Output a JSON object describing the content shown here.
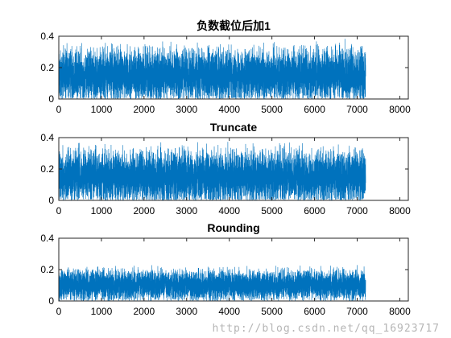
{
  "chart_data": [
    {
      "type": "line",
      "title": "负数截位后加1",
      "xlabel": "",
      "ylabel": "",
      "xlim": [
        0,
        8200
      ],
      "ylim": [
        0,
        0.4
      ],
      "xticks": [
        0,
        1000,
        2000,
        3000,
        4000,
        5000,
        6000,
        7000,
        8000
      ],
      "yticks": [
        0,
        0.2,
        0.4
      ],
      "series": [
        {
          "n_points": 7200,
          "x_range": [
            1,
            7200
          ],
          "approx_mean": 0.15,
          "approx_min": 0.0,
          "approx_max": 0.39,
          "color": "#0072BD"
        }
      ],
      "grid": false
    },
    {
      "type": "line",
      "title": "Truncate",
      "xlabel": "",
      "ylabel": "",
      "xlim": [
        0,
        8200
      ],
      "ylim": [
        0,
        0.4
      ],
      "xticks": [
        0,
        1000,
        2000,
        3000,
        4000,
        5000,
        6000,
        7000,
        8000
      ],
      "yticks": [
        0,
        0.2,
        0.4
      ],
      "series": [
        {
          "n_points": 7200,
          "x_range": [
            1,
            7200
          ],
          "approx_mean": 0.15,
          "approx_min": 0.0,
          "approx_max": 0.39,
          "color": "#0072BD"
        }
      ],
      "grid": false
    },
    {
      "type": "line",
      "title": "Rounding",
      "xlabel": "",
      "ylabel": "",
      "xlim": [
        0,
        8200
      ],
      "ylim": [
        0,
        0.4
      ],
      "xticks": [
        0,
        1000,
        2000,
        3000,
        4000,
        5000,
        6000,
        7000,
        8000
      ],
      "yticks": [
        0,
        0.2,
        0.4
      ],
      "series": [
        {
          "n_points": 7200,
          "x_range": [
            1,
            7200
          ],
          "approx_mean": 0.1,
          "approx_min": 0.0,
          "approx_max": 0.24,
          "color": "#0072BD"
        }
      ],
      "grid": false
    }
  ],
  "watermark": "http://blog.csdn.net/qq_16923717"
}
